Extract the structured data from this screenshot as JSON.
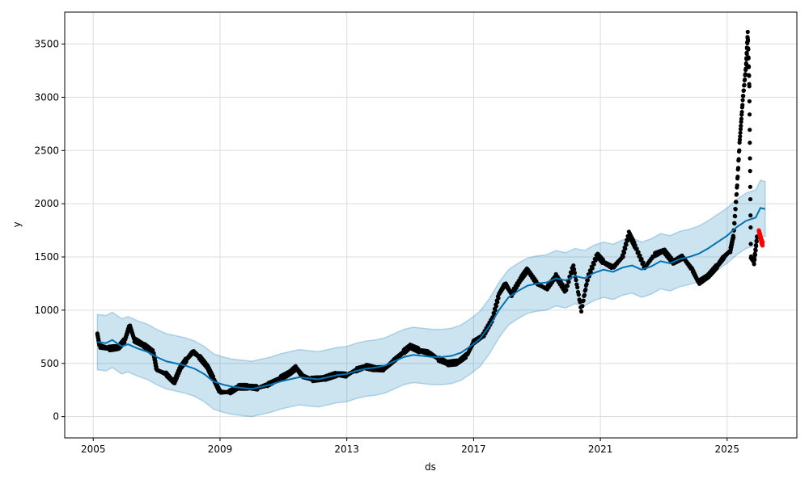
{
  "chart_data": {
    "type": "line",
    "title": "",
    "xlabel": "ds",
    "ylabel": "y",
    "xlim": [
      2004.1,
      2027.2
    ],
    "ylim": [
      -200,
      3800
    ],
    "xticks": [
      2005,
      2009,
      2013,
      2017,
      2021,
      2025
    ],
    "yticks": [
      0,
      500,
      1000,
      1500,
      2000,
      2500,
      3000,
      3500
    ],
    "grid": true,
    "colors": {
      "actual": "#000000",
      "test": "#ff0000",
      "forecast": "#0072B2",
      "band": "#0072B2"
    },
    "forecast": [
      [
        2005.13,
        700,
        440,
        960
      ],
      [
        2005.4,
        690,
        430,
        950
      ],
      [
        2005.6,
        720,
        460,
        980
      ],
      [
        2005.9,
        660,
        400,
        920
      ],
      [
        2006.1,
        680,
        420,
        940
      ],
      [
        2006.4,
        640,
        380,
        900
      ],
      [
        2006.7,
        610,
        350,
        870
      ],
      [
        2007,
        560,
        300,
        820
      ],
      [
        2007.3,
        520,
        260,
        780
      ],
      [
        2007.6,
        500,
        240,
        760
      ],
      [
        2007.9,
        480,
        220,
        740
      ],
      [
        2008.2,
        450,
        190,
        710
      ],
      [
        2008.5,
        400,
        140,
        660
      ],
      [
        2008.8,
        330,
        70,
        590
      ],
      [
        2009.1,
        300,
        40,
        560
      ],
      [
        2009.4,
        280,
        20,
        540
      ],
      [
        2009.7,
        270,
        10,
        530
      ],
      [
        2010,
        260,
        0,
        520
      ],
      [
        2010.3,
        280,
        20,
        540
      ],
      [
        2010.6,
        300,
        40,
        560
      ],
      [
        2010.9,
        330,
        70,
        590
      ],
      [
        2011.2,
        350,
        90,
        610
      ],
      [
        2011.5,
        370,
        110,
        630
      ],
      [
        2011.8,
        360,
        100,
        620
      ],
      [
        2012.1,
        350,
        90,
        610
      ],
      [
        2012.4,
        370,
        110,
        630
      ],
      [
        2012.7,
        390,
        130,
        650
      ],
      [
        2013,
        400,
        140,
        660
      ],
      [
        2013.3,
        430,
        170,
        690
      ],
      [
        2013.6,
        450,
        190,
        710
      ],
      [
        2013.9,
        460,
        200,
        720
      ],
      [
        2014.2,
        480,
        220,
        740
      ],
      [
        2014.5,
        520,
        260,
        780
      ],
      [
        2014.8,
        560,
        300,
        820
      ],
      [
        2015.1,
        580,
        320,
        840
      ],
      [
        2015.4,
        570,
        310,
        830
      ],
      [
        2015.7,
        560,
        300,
        820
      ],
      [
        2016,
        560,
        300,
        820
      ],
      [
        2016.3,
        570,
        310,
        830
      ],
      [
        2016.6,
        600,
        340,
        860
      ],
      [
        2016.9,
        660,
        400,
        920
      ],
      [
        2017.2,
        730,
        470,
        990
      ],
      [
        2017.5,
        850,
        590,
        1110
      ],
      [
        2017.8,
        1000,
        740,
        1260
      ],
      [
        2018.1,
        1120,
        860,
        1380
      ],
      [
        2018.4,
        1180,
        920,
        1440
      ],
      [
        2018.7,
        1230,
        970,
        1490
      ],
      [
        2019,
        1250,
        990,
        1510
      ],
      [
        2019.3,
        1260,
        1000,
        1520
      ],
      [
        2019.6,
        1300,
        1040,
        1560
      ],
      [
        2019.9,
        1280,
        1020,
        1540
      ],
      [
        2020.2,
        1320,
        1060,
        1580
      ],
      [
        2020.5,
        1300,
        1040,
        1560
      ],
      [
        2020.8,
        1350,
        1090,
        1610
      ],
      [
        2021.1,
        1380,
        1120,
        1640
      ],
      [
        2021.4,
        1360,
        1100,
        1620
      ],
      [
        2021.7,
        1400,
        1140,
        1660
      ],
      [
        2022,
        1420,
        1160,
        1680
      ],
      [
        2022.3,
        1380,
        1120,
        1640
      ],
      [
        2022.6,
        1410,
        1150,
        1670
      ],
      [
        2022.9,
        1460,
        1200,
        1720
      ],
      [
        2023.2,
        1440,
        1180,
        1700
      ],
      [
        2023.5,
        1480,
        1220,
        1740
      ],
      [
        2023.8,
        1500,
        1240,
        1760
      ],
      [
        2024.1,
        1530,
        1270,
        1790
      ],
      [
        2024.4,
        1580,
        1320,
        1840
      ],
      [
        2024.7,
        1640,
        1380,
        1900
      ],
      [
        2025,
        1700,
        1440,
        1960
      ],
      [
        2025.3,
        1780,
        1520,
        2040
      ],
      [
        2025.6,
        1840,
        1580,
        2100
      ],
      [
        2025.9,
        1870,
        1610,
        2130
      ],
      [
        2026.05,
        1960,
        1700,
        2220
      ],
      [
        2026.2,
        1950,
        1690,
        2210
      ]
    ],
    "actual": [
      [
        2005.13,
        780
      ],
      [
        2005.2,
        660
      ],
      [
        2005.5,
        640
      ],
      [
        2005.8,
        650
      ],
      [
        2006,
        720
      ],
      [
        2006.15,
        860
      ],
      [
        2006.3,
        720
      ],
      [
        2006.6,
        670
      ],
      [
        2006.9,
        600
      ],
      [
        2007.0,
        440
      ],
      [
        2007.3,
        400
      ],
      [
        2007.55,
        320
      ],
      [
        2007.75,
        460
      ],
      [
        2007.95,
        540
      ],
      [
        2008.15,
        610
      ],
      [
        2008.35,
        560
      ],
      [
        2008.6,
        470
      ],
      [
        2008.8,
        350
      ],
      [
        2009,
        230
      ],
      [
        2009.3,
        230
      ],
      [
        2009.6,
        280
      ],
      [
        2009.9,
        280
      ],
      [
        2010.2,
        270
      ],
      [
        2010.5,
        300
      ],
      [
        2010.9,
        360
      ],
      [
        2011.2,
        410
      ],
      [
        2011.4,
        460
      ],
      [
        2011.6,
        380
      ],
      [
        2011.9,
        350
      ],
      [
        2012.3,
        360
      ],
      [
        2012.7,
        400
      ],
      [
        2013,
        390
      ],
      [
        2013.3,
        440
      ],
      [
        2013.6,
        470
      ],
      [
        2013.9,
        450
      ],
      [
        2014.2,
        450
      ],
      [
        2014.5,
        530
      ],
      [
        2014.8,
        610
      ],
      [
        2015.0,
        660
      ],
      [
        2015.3,
        620
      ],
      [
        2015.6,
        600
      ],
      [
        2015.9,
        540
      ],
      [
        2016.2,
        500
      ],
      [
        2016.5,
        510
      ],
      [
        2016.8,
        580
      ],
      [
        2017,
        700
      ],
      [
        2017.3,
        760
      ],
      [
        2017.6,
        920
      ],
      [
        2017.8,
        1150
      ],
      [
        2018.0,
        1250
      ],
      [
        2018.2,
        1150
      ],
      [
        2018.5,
        1300
      ],
      [
        2018.7,
        1380
      ],
      [
        2019.0,
        1250
      ],
      [
        2019.3,
        1200
      ],
      [
        2019.6,
        1320
      ],
      [
        2019.9,
        1180
      ],
      [
        2020.15,
        1420
      ],
      [
        2020.4,
        1000
      ],
      [
        2020.6,
        1300
      ],
      [
        2020.9,
        1520
      ],
      [
        2021.1,
        1450
      ],
      [
        2021.4,
        1400
      ],
      [
        2021.7,
        1500
      ],
      [
        2021.9,
        1720
      ],
      [
        2022.1,
        1600
      ],
      [
        2022.4,
        1400
      ],
      [
        2022.7,
        1520
      ],
      [
        2023.0,
        1560
      ],
      [
        2023.3,
        1450
      ],
      [
        2023.6,
        1500
      ],
      [
        2023.9,
        1380
      ],
      [
        2024.1,
        1260
      ],
      [
        2024.4,
        1320
      ],
      [
        2024.7,
        1420
      ],
      [
        2024.9,
        1500
      ],
      [
        2025.1,
        1560
      ],
      [
        2025.2,
        1700
      ],
      [
        2025.3,
        2100
      ],
      [
        2025.4,
        2600
      ],
      [
        2025.5,
        3000
      ],
      [
        2025.6,
        3300
      ],
      [
        2025.65,
        3600
      ],
      [
        2025.7,
        3100
      ],
      [
        2025.75,
        1500
      ],
      [
        2025.85,
        1450
      ],
      [
        2025.95,
        1700
      ]
    ],
    "test": [
      [
        2026.0,
        1750
      ],
      [
        2026.04,
        1700
      ],
      [
        2026.08,
        1650
      ],
      [
        2026.12,
        1620
      ]
    ]
  }
}
